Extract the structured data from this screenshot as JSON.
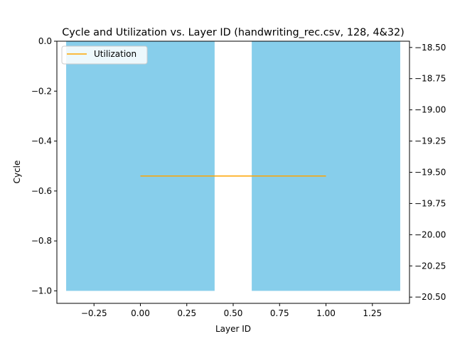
{
  "chart_data": {
    "type": "bar",
    "title": "Cycle and Utilization vs. Layer ID (handwriting_rec.csv, 128, 4&32)",
    "xlabel": "Layer ID",
    "ylabel": "Cycle",
    "xlim": [
      -0.45,
      1.45
    ],
    "ylim": [
      -1.05,
      0.0
    ],
    "y2lim": [
      -20.55,
      -18.45
    ],
    "x_ticks": [
      -0.25,
      0.0,
      0.25,
      0.5,
      0.75,
      1.0,
      1.25
    ],
    "x_tick_labels": [
      "−0.25",
      "0.00",
      "0.25",
      "0.50",
      "0.75",
      "1.00",
      "1.25"
    ],
    "y_ticks": [
      0.0,
      -0.2,
      -0.4,
      -0.6,
      -0.8,
      -1.0
    ],
    "y_tick_labels": [
      "0.0",
      "−0.2",
      "−0.4",
      "−0.6",
      "−0.8",
      "−1.0"
    ],
    "y2_ticks": [
      -18.5,
      -18.75,
      -19.0,
      -19.25,
      -19.5,
      -19.75,
      -20.0,
      -20.25,
      -20.5
    ],
    "y2_tick_labels": [
      "−18.50",
      "−18.75",
      "−19.00",
      "−19.25",
      "−19.50",
      "−19.75",
      "−20.00",
      "−20.25",
      "−20.50"
    ],
    "grid": false,
    "legend_position": "top-left",
    "bars": {
      "x": [
        0,
        1
      ],
      "width": 0.8,
      "values": [
        -1.0,
        -1.0
      ],
      "color": "#87CEEB"
    },
    "series": [
      {
        "name": "Utilization",
        "axis": "right",
        "type": "line",
        "x": [
          0,
          1
        ],
        "values": [
          -19.53,
          -19.53
        ],
        "color": "#FFA500"
      }
    ]
  }
}
